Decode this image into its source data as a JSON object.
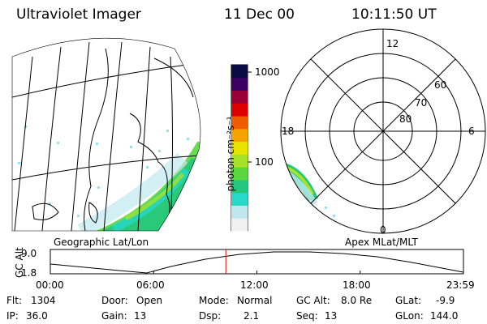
{
  "header": {
    "instrument": "Ultraviolet Imager",
    "date": "11 Dec 00",
    "time": "10:11:50 UT"
  },
  "geo_panel": {
    "caption": "Geographic Lat/Lon"
  },
  "colorbar": {
    "unit_label": "photon cm⁻²s⁻¹",
    "ticks": [
      "1000",
      "100"
    ],
    "scale": "log",
    "colors": [
      "#f0f0f0",
      "#bfe8ee",
      "#28d8c8",
      "#22c77d",
      "#58d83c",
      "#a6e227",
      "#e8e400",
      "#f4a300",
      "#f05a00",
      "#dc0000",
      "#9a0035",
      "#3c0063",
      "#0a0a46"
    ]
  },
  "polar_panel": {
    "caption": "Apex MLat/MLT",
    "mlt_labels": {
      "top": "12",
      "left": "18",
      "right": "6",
      "bottom": "0"
    },
    "lat_labels": [
      "60",
      "70",
      "80"
    ]
  },
  "altitude_plot": {
    "ylabel": "GC Alt",
    "yticks": [
      "9.0",
      "1.8"
    ],
    "xticks": [
      "00:00",
      "06:00",
      "12:00",
      "18:00",
      "23:59"
    ],
    "current_time_marker_hour": 10.197
  },
  "status": {
    "flt_label": "Flt:",
    "flt_value": "1304",
    "ip_label": "IP:",
    "ip_value": "36.0",
    "door_label": "Door:",
    "door_value": "Open",
    "gain_label": "Gain:",
    "gain_value": "13",
    "mode_label": "Mode:",
    "mode_value": "Normal",
    "dsp_label": "Dsp:",
    "dsp_value": "2.1",
    "gcalt_label": "GC Alt:",
    "gcalt_value": "8.0 Re",
    "seq_label": "Seq:",
    "seq_value": "13",
    "glat_label": "GLat:",
    "glat_value": "-9.9",
    "glon_label": "GLon:",
    "glon_value": "144.0"
  }
}
